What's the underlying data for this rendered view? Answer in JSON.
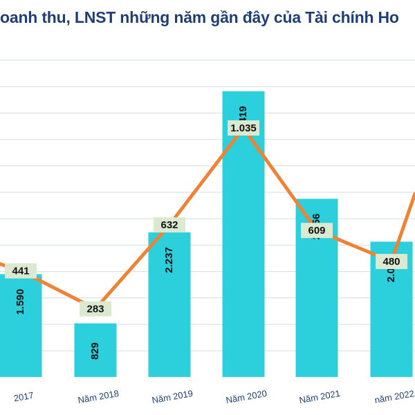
{
  "title": "oanh thu, LNST những năm gần đây của Tài chính Ho",
  "colors": {
    "bar": "#2ccfdc",
    "line": "#ee8235",
    "line_label_bg": "#dbe9d1",
    "grid": "#d6dce4",
    "title": "#1f3f73"
  },
  "chart_data": {
    "type": "bar",
    "categories": [
      "2017",
      "Năm 2018",
      "Năm 2019",
      "Năm 2020",
      "Năm 2021",
      "năm 2022"
    ],
    "series": [
      {
        "values": [
          1.59,
          0.829,
          2.237,
          4.419,
          2.756,
          2.093
        ],
        "labels": [
          "1.590",
          "829",
          "2.237",
          "4.419",
          "2.756",
          "2.093"
        ]
      },
      {
        "values": [
          441,
          283,
          632,
          1035,
          609,
          480
        ],
        "labels": [
          "441",
          "283",
          "632",
          "1.035",
          "609",
          "480"
        ]
      }
    ],
    "line_continues_up_after_last": true,
    "grid": true
  }
}
